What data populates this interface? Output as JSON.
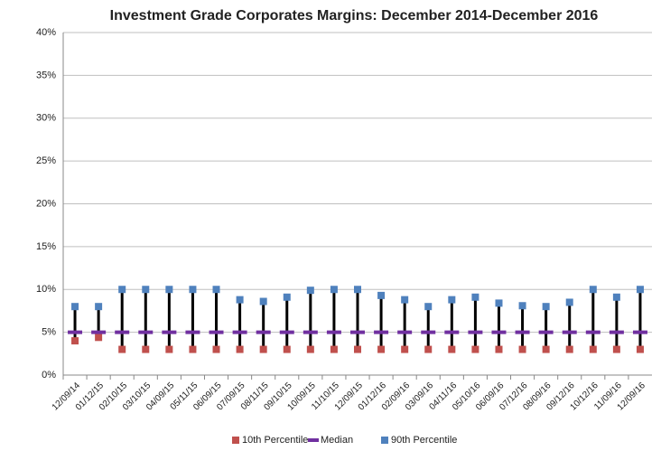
{
  "chart_data": {
    "type": "hilo",
    "title": "Investment Grade Corporates Margins: December 2014-December 2016",
    "categories": [
      "12/09/14",
      "01/12/15",
      "02/10/15",
      "03/10/15",
      "04/09/15",
      "05/11/15",
      "06/09/15",
      "07/09/15",
      "08/11/15",
      "09/10/15",
      "10/09/15",
      "11/10/15",
      "12/09/15",
      "01/12/16",
      "02/09/16",
      "03/09/16",
      "04/11/16",
      "05/10/16",
      "06/09/16",
      "07/12/16",
      "08/09/16",
      "09/12/16",
      "10/12/16",
      "11/09/16",
      "12/09/16"
    ],
    "series": [
      {
        "name": "10th Percentile",
        "color": "#c0504d",
        "values": [
          4,
          4.4,
          3,
          3,
          3,
          3,
          3,
          3,
          3,
          3,
          3,
          3,
          3,
          3,
          3,
          3,
          3,
          3,
          3,
          3,
          3,
          3,
          3,
          3,
          3
        ]
      },
      {
        "name": "Median",
        "color": "#7030a0",
        "values": [
          5,
          5,
          5,
          5,
          5,
          5,
          5,
          5,
          5,
          5,
          5,
          5,
          5,
          5,
          5,
          5,
          5,
          5,
          5,
          5,
          5,
          5,
          5,
          5,
          5
        ]
      },
      {
        "name": "90th Percentile",
        "color": "#4f81bd",
        "values": [
          8,
          8,
          10,
          10,
          10,
          10,
          10,
          8.8,
          8.6,
          9.1,
          9.9,
          10,
          10,
          9.3,
          8.8,
          8,
          8.8,
          9.1,
          8.4,
          8.1,
          8,
          8.5,
          10,
          9.1,
          10
        ]
      }
    ],
    "ylim": [
      0,
      40
    ],
    "yticks": [
      {
        "value": 0,
        "label": "0%"
      },
      {
        "value": 5,
        "label": "5%"
      },
      {
        "value": 10,
        "label": "10%"
      },
      {
        "value": 15,
        "label": "15%"
      },
      {
        "value": 20,
        "label": "20%"
      },
      {
        "value": 25,
        "label": "25%"
      },
      {
        "value": 30,
        "label": "30%"
      },
      {
        "value": 35,
        "label": "35%"
      },
      {
        "value": 40,
        "label": "40%"
      }
    ],
    "grid": true
  }
}
